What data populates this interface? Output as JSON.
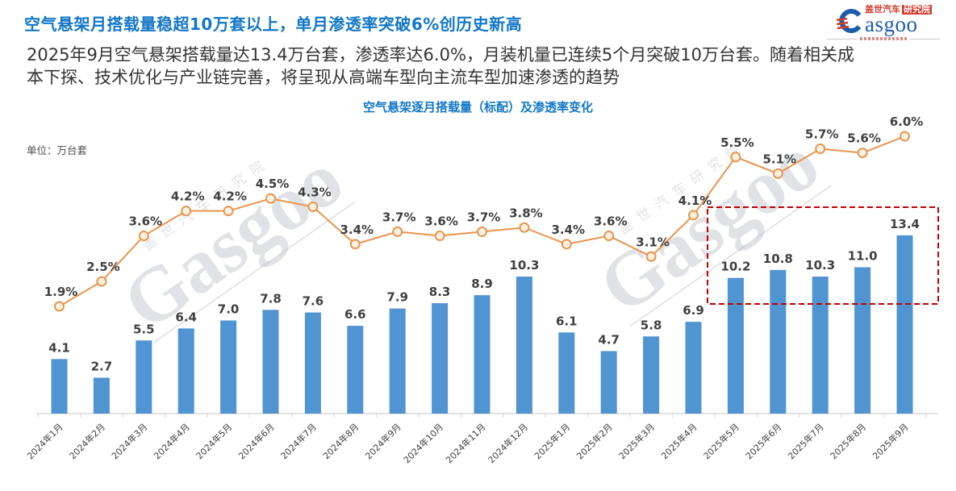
{
  "header": {
    "title": "空气悬架月搭载量稳超10万套以上，单月渗透率突破6%创历史新高",
    "paragraph_lines": [
      "2025年9月空气悬架搭载量达13.4万台套，渗透率达6.0%，月装机量已连续5个月突破10万台套。随着相关成",
      "本下探、技术优化与产业链完善，将呈现从高端车型向主流车型加速渗透的趋势"
    ],
    "logo": {
      "brand_cn": "盖世汽车",
      "brand_cn_suffix": "研究院",
      "brand_en_tail": "asgoo"
    }
  },
  "watermark": {
    "text_cn": "盖世汽车研究院",
    "text_en": "Gasgoo"
  },
  "chart_data": {
    "type": "bar+line",
    "title": "空气悬架逐月搭载量（标配）及渗透率变化",
    "unit_label": "单位：万台套",
    "categories": [
      "2024年1月",
      "2024年2月",
      "2024年3月",
      "2024年4月",
      "2024年5月",
      "2024年6月",
      "2024年7月",
      "2024年8月",
      "2024年9月",
      "2024年10月",
      "2024年11月",
      "2024年12月",
      "2025年1月",
      "2025年2月",
      "2025年3月",
      "2025年4月",
      "2025年5月",
      "2025年6月",
      "2025年7月",
      "2025年8月",
      "2025年9月"
    ],
    "series": [
      {
        "name": "空气悬架逐月搭载量（标配，万台套）",
        "type": "bar",
        "color": "#5094D2",
        "values": [
          4.1,
          2.7,
          5.5,
          6.4,
          7.0,
          7.8,
          7.6,
          6.6,
          7.9,
          8.3,
          8.9,
          10.3,
          6.1,
          4.7,
          5.8,
          6.9,
          10.2,
          10.8,
          10.3,
          11.0,
          13.4
        ]
      },
      {
        "name": "渗透率",
        "type": "line",
        "unit": "%",
        "color": "#E8954E",
        "marker_fill": "#FBF1E2",
        "values": [
          1.9,
          2.5,
          3.6,
          4.2,
          4.2,
          4.5,
          4.3,
          3.4,
          3.7,
          3.6,
          3.7,
          3.8,
          3.4,
          3.6,
          3.1,
          4.1,
          5.5,
          5.1,
          5.7,
          5.6,
          6.0
        ]
      }
    ],
    "bar_value_range_hint": [
      0,
      14
    ],
    "line_value_range_hint": [
      0,
      7
    ],
    "grid": "off",
    "legend": "none",
    "label_color": "#3F3F3F",
    "axis_color": "#D8D8D8",
    "annotations": {
      "highlight_box": {
        "from_category": "2025年5月",
        "to_category": "2025年9月",
        "color": "#C00000",
        "style": "dashed"
      }
    }
  }
}
